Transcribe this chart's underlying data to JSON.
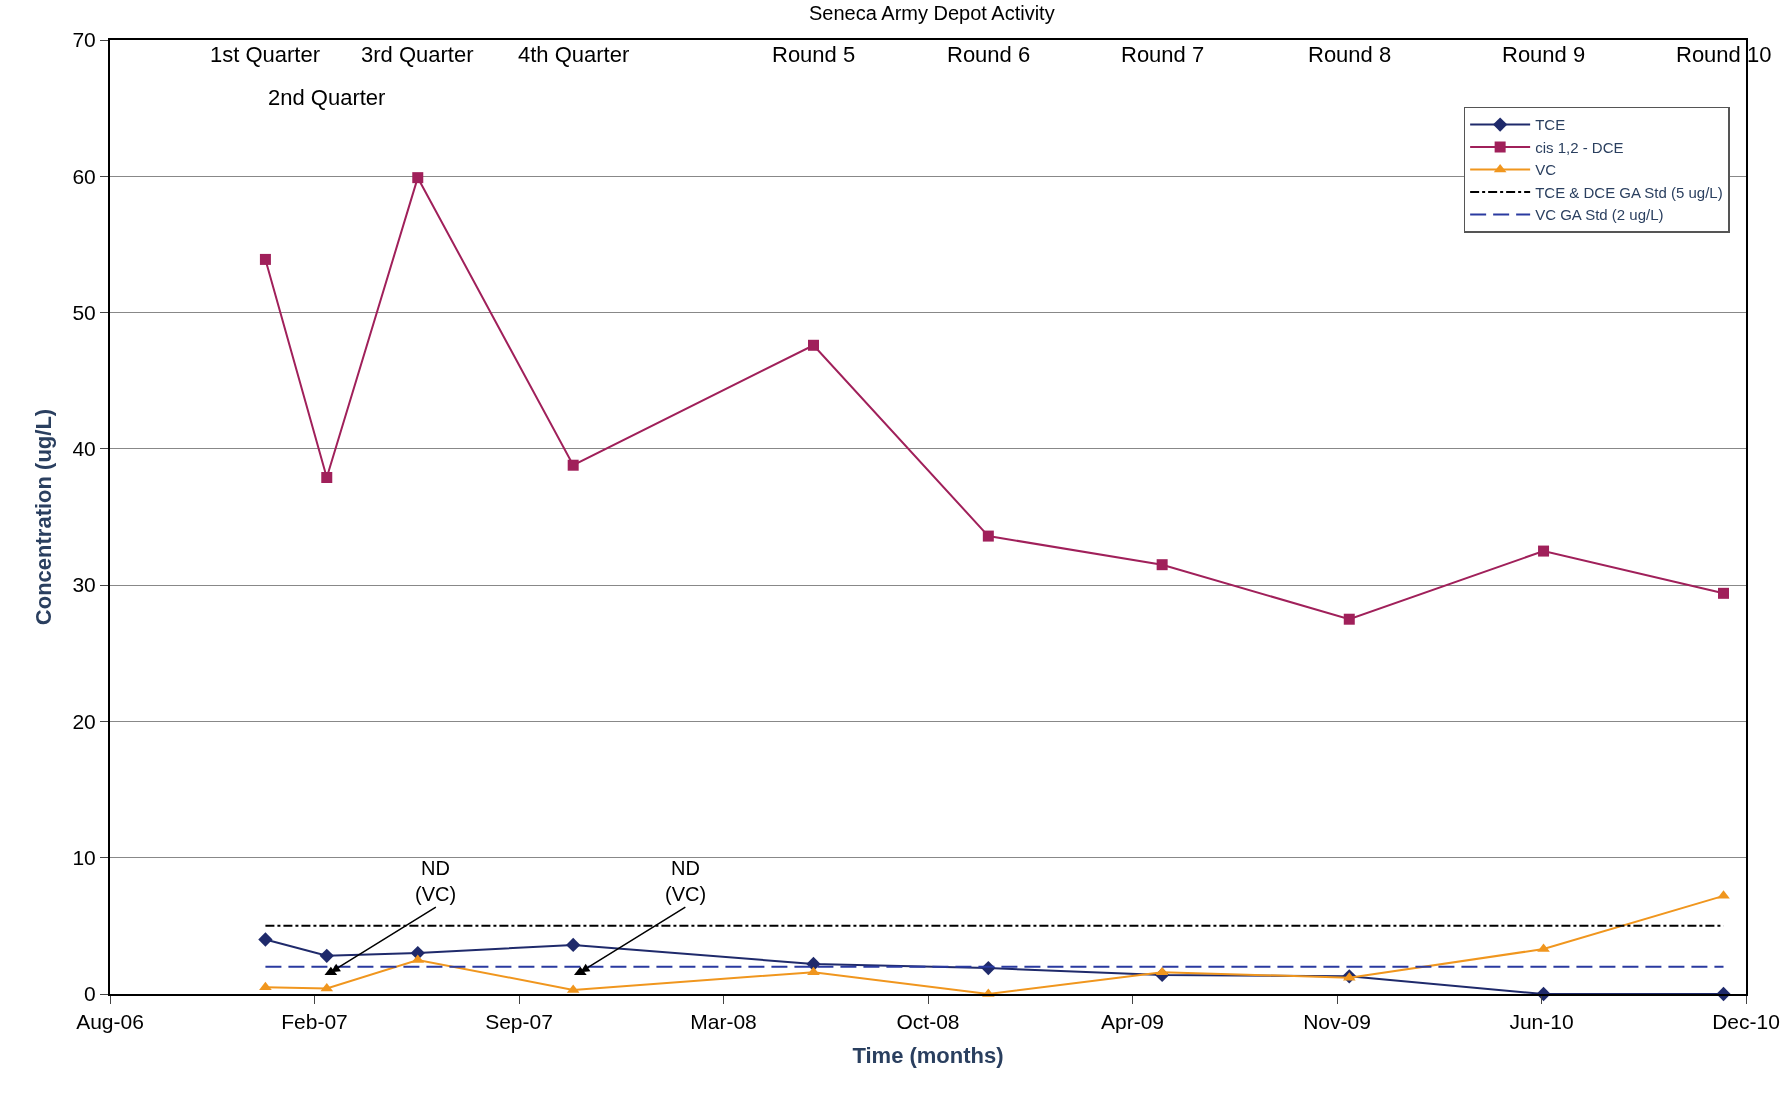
{
  "chart_data": {
    "type": "line",
    "title": "Seneca Army Depot Activity",
    "xlabel": "Time (months)",
    "ylabel": "Concentration (ug/L)",
    "xlim": [
      "2006-08-01",
      "2010-12-18"
    ],
    "xticks": [
      {
        "value": "2006-08-01",
        "label": "Aug-06"
      },
      {
        "value": "2007-02-17",
        "label": "Feb-07"
      },
      {
        "value": "2007-09-05",
        "label": "Sep-07"
      },
      {
        "value": "2008-03-23",
        "label": "Mar-08"
      },
      {
        "value": "2008-10-09",
        "label": "Oct-08"
      },
      {
        "value": "2009-04-27",
        "label": "Apr-09"
      },
      {
        "value": "2009-11-13",
        "label": "Nov-09"
      },
      {
        "value": "2010-06-01",
        "label": "Jun-10"
      },
      {
        "value": "2010-12-18",
        "label": "Dec-10"
      }
    ],
    "ylim": [
      0,
      70
    ],
    "yticks": [
      0,
      10,
      20,
      30,
      40,
      50,
      60,
      70
    ],
    "grid": "y",
    "legend": "top right",
    "x": [
      "2006-12-31",
      "2007-03-01",
      "2007-05-29",
      "2007-10-28",
      "2008-06-19",
      "2008-12-07",
      "2009-05-26",
      "2009-11-25",
      "2010-06-03",
      "2010-11-26"
    ],
    "series": [
      {
        "name": "TCE",
        "color": "#1f2a6b",
        "marker": "diamond",
        "values": [
          4.0,
          2.8,
          3.0,
          3.6,
          2.2,
          1.9,
          1.4,
          1.3,
          0,
          0
        ]
      },
      {
        "name": "cis 1,2 - DCE",
        "color": "#a0205a",
        "marker": "square",
        "values": [
          53.9,
          37.9,
          59.9,
          38.8,
          47.6,
          33.6,
          31.5,
          27.5,
          32.5,
          29.4
        ]
      },
      {
        "name": "VC",
        "color": "#f0961e",
        "marker": "triangle",
        "values": [
          0.5,
          0.4,
          2.5,
          0.3,
          1.6,
          0,
          1.6,
          1.2,
          3.3,
          7.2
        ]
      },
      {
        "name": "TCE & DCE GA Std (5 ug/L)",
        "color": "#000000",
        "marker": "none",
        "line_style": "dashdot",
        "x": [
          "2006-12-31",
          "2010-11-26"
        ],
        "values": [
          5,
          5
        ]
      },
      {
        "name": "VC GA Std (2 ug/L)",
        "color": "#2a3aa0",
        "marker": "none",
        "line_style": "dashed",
        "x": [
          "2006-12-31",
          "2010-11-26"
        ],
        "values": [
          2,
          2
        ]
      },
      {
        "type": "scatter",
        "color": "#000000",
        "marker": "triangle",
        "x": [
          "2007-03-05",
          "2007-11-04"
        ],
        "values": [
          1.6,
          1.6
        ]
      }
    ],
    "annotations": [
      "1st Quarter",
      "2nd Quarter",
      "3rd Quarter",
      "4th Quarter",
      "Round 5",
      "Round 6",
      "Round 7",
      "Round 8",
      "Round 9",
      "Round 10",
      {
        "text": "ND\n(VC)",
        "x": "2007-03-05",
        "y": 1.6
      },
      {
        "text": "ND\n(VC)",
        "x": "2007-11-04",
        "y": 1.6
      }
    ]
  }
}
